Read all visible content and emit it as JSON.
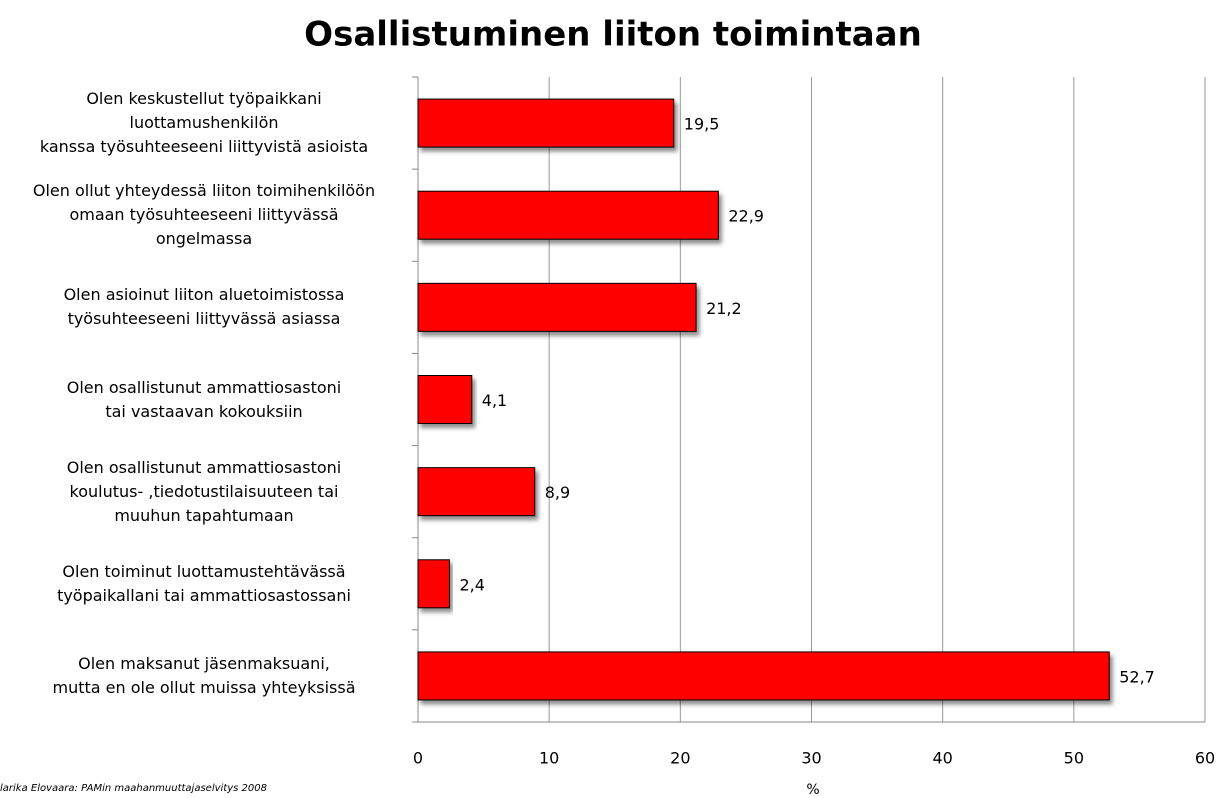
{
  "chart_data": {
    "type": "hbar",
    "title": "Osallistuminen liiton toimintaan",
    "categories": [
      "Olen keskustellut työpaikkani\nluottamushenkilön\nkanssa työsuhteeseeni liittyvistä asioista",
      "Olen ollut yhteydessä liiton toimihenkilöön\nomaan työsuhteeseeni liittyvässä\nongelmassa",
      "Olen asioinut liiton aluetoimistossa\ntyösuhteeseeni liittyvässä asiassa",
      "Olen osallistunut ammattiosastoni\ntai vastaavan kokouksiin",
      "Olen osallistunut ammattiosastoni\nkoulutus- ,tiedotustilaisuuteen tai\nmuuhun tapahtumaan",
      "Olen toiminut luottamustehtävässä\ntyöpaikallani tai ammattiosastossani",
      "Olen maksanut jäsenmaksuani,\nmutta en ole ollut muissa yhteyksissä"
    ],
    "values": [
      19.5,
      22.9,
      21.2,
      4.1,
      8.9,
      2.4,
      52.7
    ],
    "value_labels": [
      "19,5",
      "22,9",
      "21,2",
      "4,1",
      "8,9",
      "2,4",
      "52,7"
    ],
    "color": "#ff0000",
    "xlabel": "%",
    "xlim": [
      0,
      60
    ],
    "xticks": [
      0,
      10,
      20,
      30,
      40,
      50,
      60
    ],
    "grid": true,
    "source": "larika Elovaara: PAMin maahanmuuttajaselvitys 2008"
  }
}
